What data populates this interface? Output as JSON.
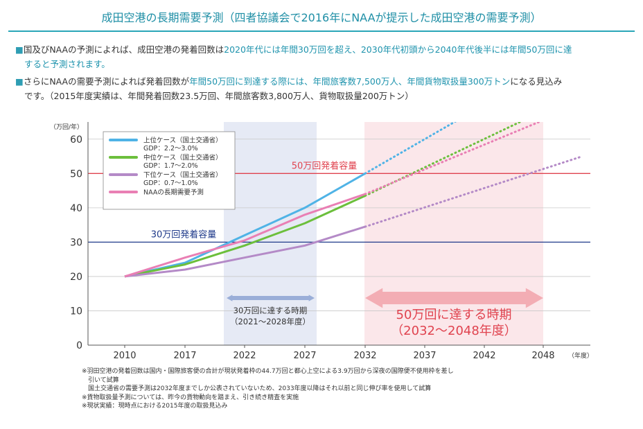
{
  "title": "成田空港の長期需要予測（四者協議会で2016年にNAAが提示した成田空港の需要予測）",
  "bullets": [
    {
      "mark": "■",
      "pre": "国及びNAAの予測によれば、成田空港の発着回数は",
      "hl": "2020年代には年間30万回を超え、2030年代初頭から2040年代後半には年間50万回に達",
      "cont": "すると予測されます。"
    },
    {
      "mark": "■",
      "pre": "さらにNAAの需要予測によれば発着回数が",
      "hl": "年間50万回に到達する際には、年間旅客数7,500万人、年間貨物取扱量300万トン",
      "post": "になる見込み",
      "cont": "です。（2015年度実績は、年間発着回数23.5万回、年間旅客数3,800万人、貨物取扱量200万トン）"
    }
  ],
  "footnotes": [
    "※羽田空港の発着回数は国内・国際旅客便の合計が現状発着枠の44.7万回と都心上空による3.9万回から深夜の国際便不使用枠を差し",
    "　引いて試算",
    "　国土交通省の需要予測は2032年度までしか公表されていないため、2033年度以降はそれ以前と同じ伸び率を使用して試算",
    "※貨物取扱量予測については、昨今の貨物動向を踏まえ、引き続き精査を実施",
    "※現状実績：現時点における2015年度の取扱見込み"
  ],
  "chart_data": {
    "type": "line",
    "y_unit_label": "（万回/年）",
    "x_unit_label": "（年度）",
    "x_ticks": [
      2010,
      2017,
      2022,
      2027,
      2032,
      2037,
      2042,
      2048
    ],
    "y_ticks": [
      0,
      10,
      20,
      30,
      40,
      50,
      60
    ],
    "ylim": [
      0,
      65
    ],
    "grid": true,
    "legend_position": "top-left",
    "series": [
      {
        "name": "上位ケース（国土交通省）",
        "sub": "GDP：2.2〜3.0%",
        "color": "#4fb3e6",
        "points": [
          [
            2010,
            20
          ],
          [
            2017,
            24
          ],
          [
            2022,
            32
          ],
          [
            2027,
            40
          ],
          [
            2032,
            50
          ]
        ],
        "projection": [
          [
            2032,
            50
          ],
          [
            2040,
            66
          ]
        ]
      },
      {
        "name": "中位ケース（国土交通省）",
        "sub": "GDP：1.7〜2.0%",
        "color": "#6cbf3c",
        "points": [
          [
            2010,
            20
          ],
          [
            2017,
            23.5
          ],
          [
            2022,
            29
          ],
          [
            2027,
            35.5
          ],
          [
            2032,
            43.5
          ]
        ],
        "projection": [
          [
            2032,
            43.5
          ],
          [
            2046,
            65.5
          ]
        ]
      },
      {
        "name": "下位ケース（国土交通省）",
        "sub": "GDP：0.7〜1.0%",
        "color": "#b48ac7",
        "points": [
          [
            2010,
            20
          ],
          [
            2017,
            22
          ],
          [
            2022,
            25.5
          ],
          [
            2027,
            29
          ],
          [
            2032,
            34.5
          ]
        ],
        "projection": [
          [
            2032,
            34.5
          ],
          [
            2052,
            55
          ]
        ]
      },
      {
        "name": "NAAの長期需要予測",
        "sub": "",
        "color": "#e97fb4",
        "points": [
          [
            2010,
            20
          ],
          [
            2017,
            25.5
          ],
          [
            2022,
            30.5
          ],
          [
            2027,
            38
          ],
          [
            2032,
            44
          ]
        ],
        "projection": [
          [
            2032,
            44
          ],
          [
            2048,
            65.5
          ]
        ]
      }
    ],
    "capacity_lines": [
      {
        "label": "50万回発着容量",
        "value": 50,
        "color": "#e0434f"
      },
      {
        "label": "30万回発着容量",
        "value": 30,
        "color": "#1f3a8a"
      }
    ],
    "periods": [
      {
        "label1": "30万回に達する時期",
        "label2": "（2021〜2028年度）",
        "from": 2021,
        "to": 2028,
        "bg": "#e6eaf5",
        "arrow": "#9aaed8",
        "text": "#333333"
      },
      {
        "label1": "50万回に達する時期",
        "label2": "（2032〜2048年度）",
        "from": 2032,
        "to": 2048,
        "bg": "#fbe7ea",
        "arrow": "#f3adb4",
        "text": "#e0434f"
      }
    ]
  }
}
